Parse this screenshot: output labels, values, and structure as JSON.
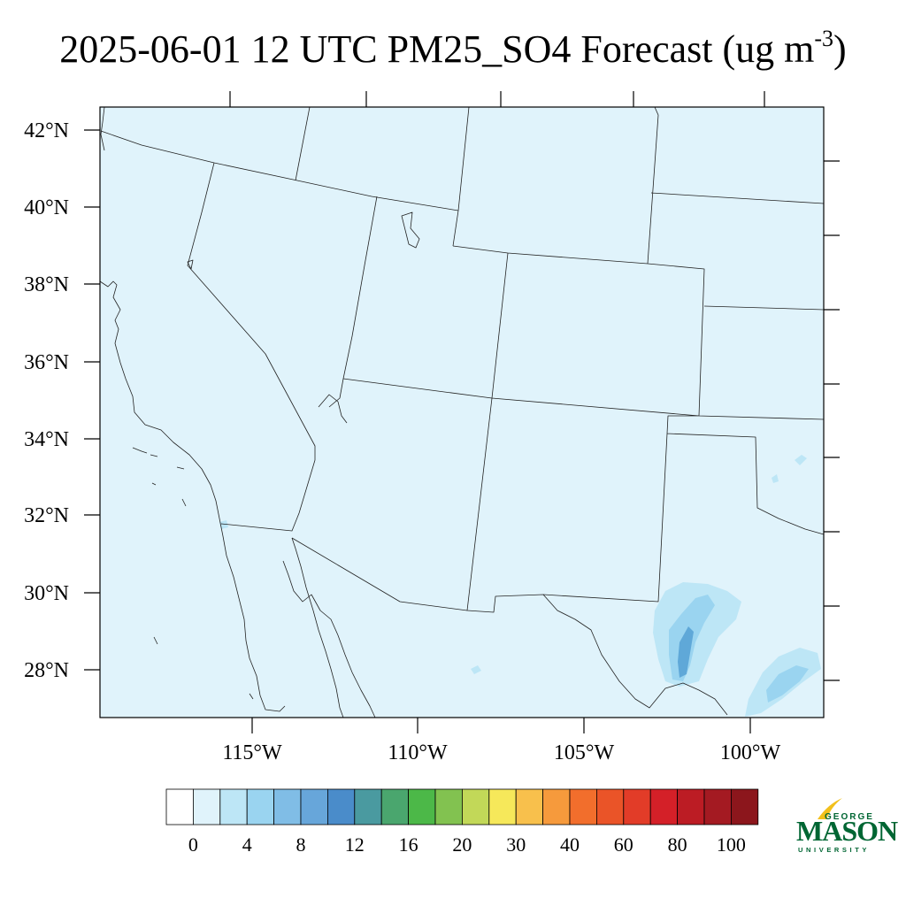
{
  "title": {
    "main": "2025-06-01 12 UTC PM25_SO4 Forecast (ug m",
    "superscript": "-3",
    "close": ")"
  },
  "map": {
    "background_color": "#e0f3fb",
    "latitude_labels": [
      "42°N",
      "40°N",
      "38°N",
      "36°N",
      "34°N",
      "32°N",
      "30°N",
      "28°N"
    ],
    "longitude_labels": [
      "115°W",
      "110°W",
      "105°W",
      "100°W"
    ],
    "contour_colors": [
      "#bde6f6",
      "#9ad4f0",
      "#5fa8d8"
    ]
  },
  "colorbar": {
    "colors": [
      "#ffffff",
      "#e0f3fb",
      "#bde6f6",
      "#9ad4f0",
      "#80bde6",
      "#67a6da",
      "#4a8cca",
      "#4a9aa0",
      "#4aa66e",
      "#4cb848",
      "#82c250",
      "#c2d858",
      "#f6e85a",
      "#f8c04c",
      "#f69a3c",
      "#f26e2c",
      "#ea5428",
      "#e23c28",
      "#d42028",
      "#bc1c24",
      "#a41a22",
      "#8c161c"
    ],
    "labels": [
      "0",
      "4",
      "8",
      "12",
      "16",
      "20",
      "30",
      "40",
      "60",
      "80",
      "100"
    ]
  },
  "logo": {
    "line1": "GEORGE",
    "line2": "MASON",
    "line3": "UNIVERSITY",
    "green": "#006633",
    "gold": "#f2c01c"
  }
}
